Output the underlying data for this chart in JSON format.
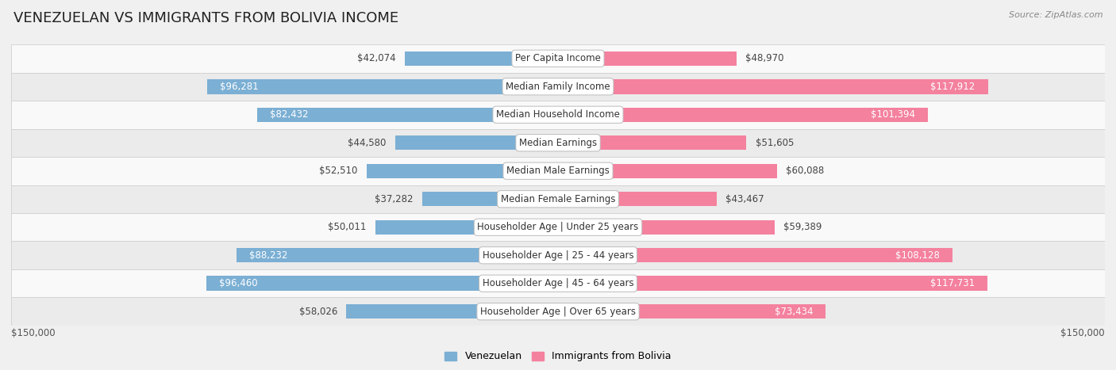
{
  "title": "VENEZUELAN VS IMMIGRANTS FROM BOLIVIA INCOME",
  "source": "Source: ZipAtlas.com",
  "categories": [
    "Per Capita Income",
    "Median Family Income",
    "Median Household Income",
    "Median Earnings",
    "Median Male Earnings",
    "Median Female Earnings",
    "Householder Age | Under 25 years",
    "Householder Age | 25 - 44 years",
    "Householder Age | 45 - 64 years",
    "Householder Age | Over 65 years"
  ],
  "venezuelan_values": [
    42074,
    96281,
    82432,
    44580,
    52510,
    37282,
    50011,
    88232,
    96460,
    58026
  ],
  "bolivia_values": [
    48970,
    117912,
    101394,
    51605,
    60088,
    43467,
    59389,
    108128,
    117731,
    73434
  ],
  "venezuelan_labels": [
    "$42,074",
    "$96,281",
    "$82,432",
    "$44,580",
    "$52,510",
    "$37,282",
    "$50,011",
    "$88,232",
    "$96,460",
    "$58,026"
  ],
  "bolivia_labels": [
    "$48,970",
    "$117,912",
    "$101,394",
    "$51,605",
    "$60,088",
    "$43,467",
    "$59,389",
    "$108,128",
    "$117,731",
    "$73,434"
  ],
  "venezuelan_color": "#7bafd4",
  "bolivia_color": "#f4819e",
  "venezuelan_color_light": "#a8cce0",
  "bolivia_color_light": "#f9b8ca",
  "bar_height": 0.52,
  "max_value": 150000,
  "background_color": "#f0f0f0",
  "row_colors": [
    "#f9f9f9",
    "#ebebeb"
  ],
  "row_border_color": "#d0d0d0",
  "legend_venezuelan": "Venezuelan",
  "legend_bolivia": "Immigrants from Bolivia",
  "xlabel_left": "$150,000",
  "xlabel_right": "$150,000",
  "title_fontsize": 13,
  "label_fontsize": 8.5,
  "category_fontsize": 8.5,
  "legend_fontsize": 9,
  "axis_fontsize": 8.5,
  "inside_threshold": 65000
}
